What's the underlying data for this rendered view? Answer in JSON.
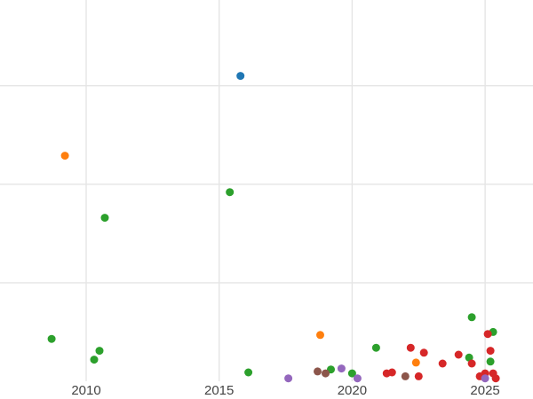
{
  "figure": {
    "title": "",
    "kind": "scatter-plot"
  },
  "colors": {
    "background": "#ffffff",
    "grid": "#e5e5e5",
    "tick_label": "#444444"
  },
  "axis": {
    "x_ticks": [
      {
        "label": "2010",
        "year": 2010
      },
      {
        "label": "2015",
        "year": 2015
      },
      {
        "label": "2020",
        "year": 2020
      },
      {
        "label": "2025",
        "year": 2025
      }
    ],
    "tick_font_size": 15
  },
  "chart_data": {
    "type": "scatter",
    "title": "",
    "xlabel": "",
    "ylabel": "",
    "x_range": [
      2006.76,
      2026.8
    ],
    "y_range": [
      -0.18,
      3.87
    ],
    "x_gridlines": [
      2010,
      2015,
      2020,
      2025
    ],
    "y_gridlines": [
      1,
      2,
      3
    ],
    "legend": "none",
    "marker_radius": 4.5,
    "series": [
      {
        "name": "green",
        "color": "#2ca02c",
        "points": [
          [
            2008.7,
            0.43
          ],
          [
            2010.3,
            0.22
          ],
          [
            2010.5,
            0.31
          ],
          [
            2010.7,
            1.66
          ],
          [
            2015.4,
            1.92
          ],
          [
            2016.1,
            0.09
          ],
          [
            2019.2,
            0.12
          ],
          [
            2020.0,
            0.08
          ],
          [
            2020.9,
            0.34
          ],
          [
            2024.4,
            0.24
          ],
          [
            2024.5,
            0.65
          ],
          [
            2025.3,
            0.5
          ],
          [
            2025.2,
            0.2
          ]
        ]
      },
      {
        "name": "orange",
        "color": "#ff7f0e",
        "points": [
          [
            2009.2,
            2.29
          ],
          [
            2018.8,
            0.47
          ],
          [
            2022.4,
            0.19
          ]
        ]
      },
      {
        "name": "blue",
        "color": "#1f77b4",
        "points": [
          [
            2015.8,
            3.1
          ]
        ]
      },
      {
        "name": "red",
        "color": "#d62728",
        "points": [
          [
            2021.3,
            0.08
          ],
          [
            2021.5,
            0.09
          ],
          [
            2022.2,
            0.34
          ],
          [
            2022.5,
            0.05
          ],
          [
            2022.7,
            0.29
          ],
          [
            2023.4,
            0.18
          ],
          [
            2024.0,
            0.27
          ],
          [
            2024.5,
            0.18
          ],
          [
            2024.8,
            0.05
          ],
          [
            2025.0,
            0.08
          ],
          [
            2025.1,
            0.48
          ],
          [
            2025.2,
            0.31
          ],
          [
            2025.3,
            0.08
          ],
          [
            2025.4,
            0.03
          ]
        ]
      },
      {
        "name": "purple",
        "color": "#9467bd",
        "points": [
          [
            2017.6,
            0.03
          ],
          [
            2019.6,
            0.13
          ],
          [
            2020.2,
            0.03
          ],
          [
            2025.0,
            0.03
          ]
        ]
      },
      {
        "name": "brown",
        "color": "#8c564b",
        "points": [
          [
            2018.7,
            0.1
          ],
          [
            2019.0,
            0.08
          ],
          [
            2022.0,
            0.05
          ]
        ]
      }
    ]
  }
}
